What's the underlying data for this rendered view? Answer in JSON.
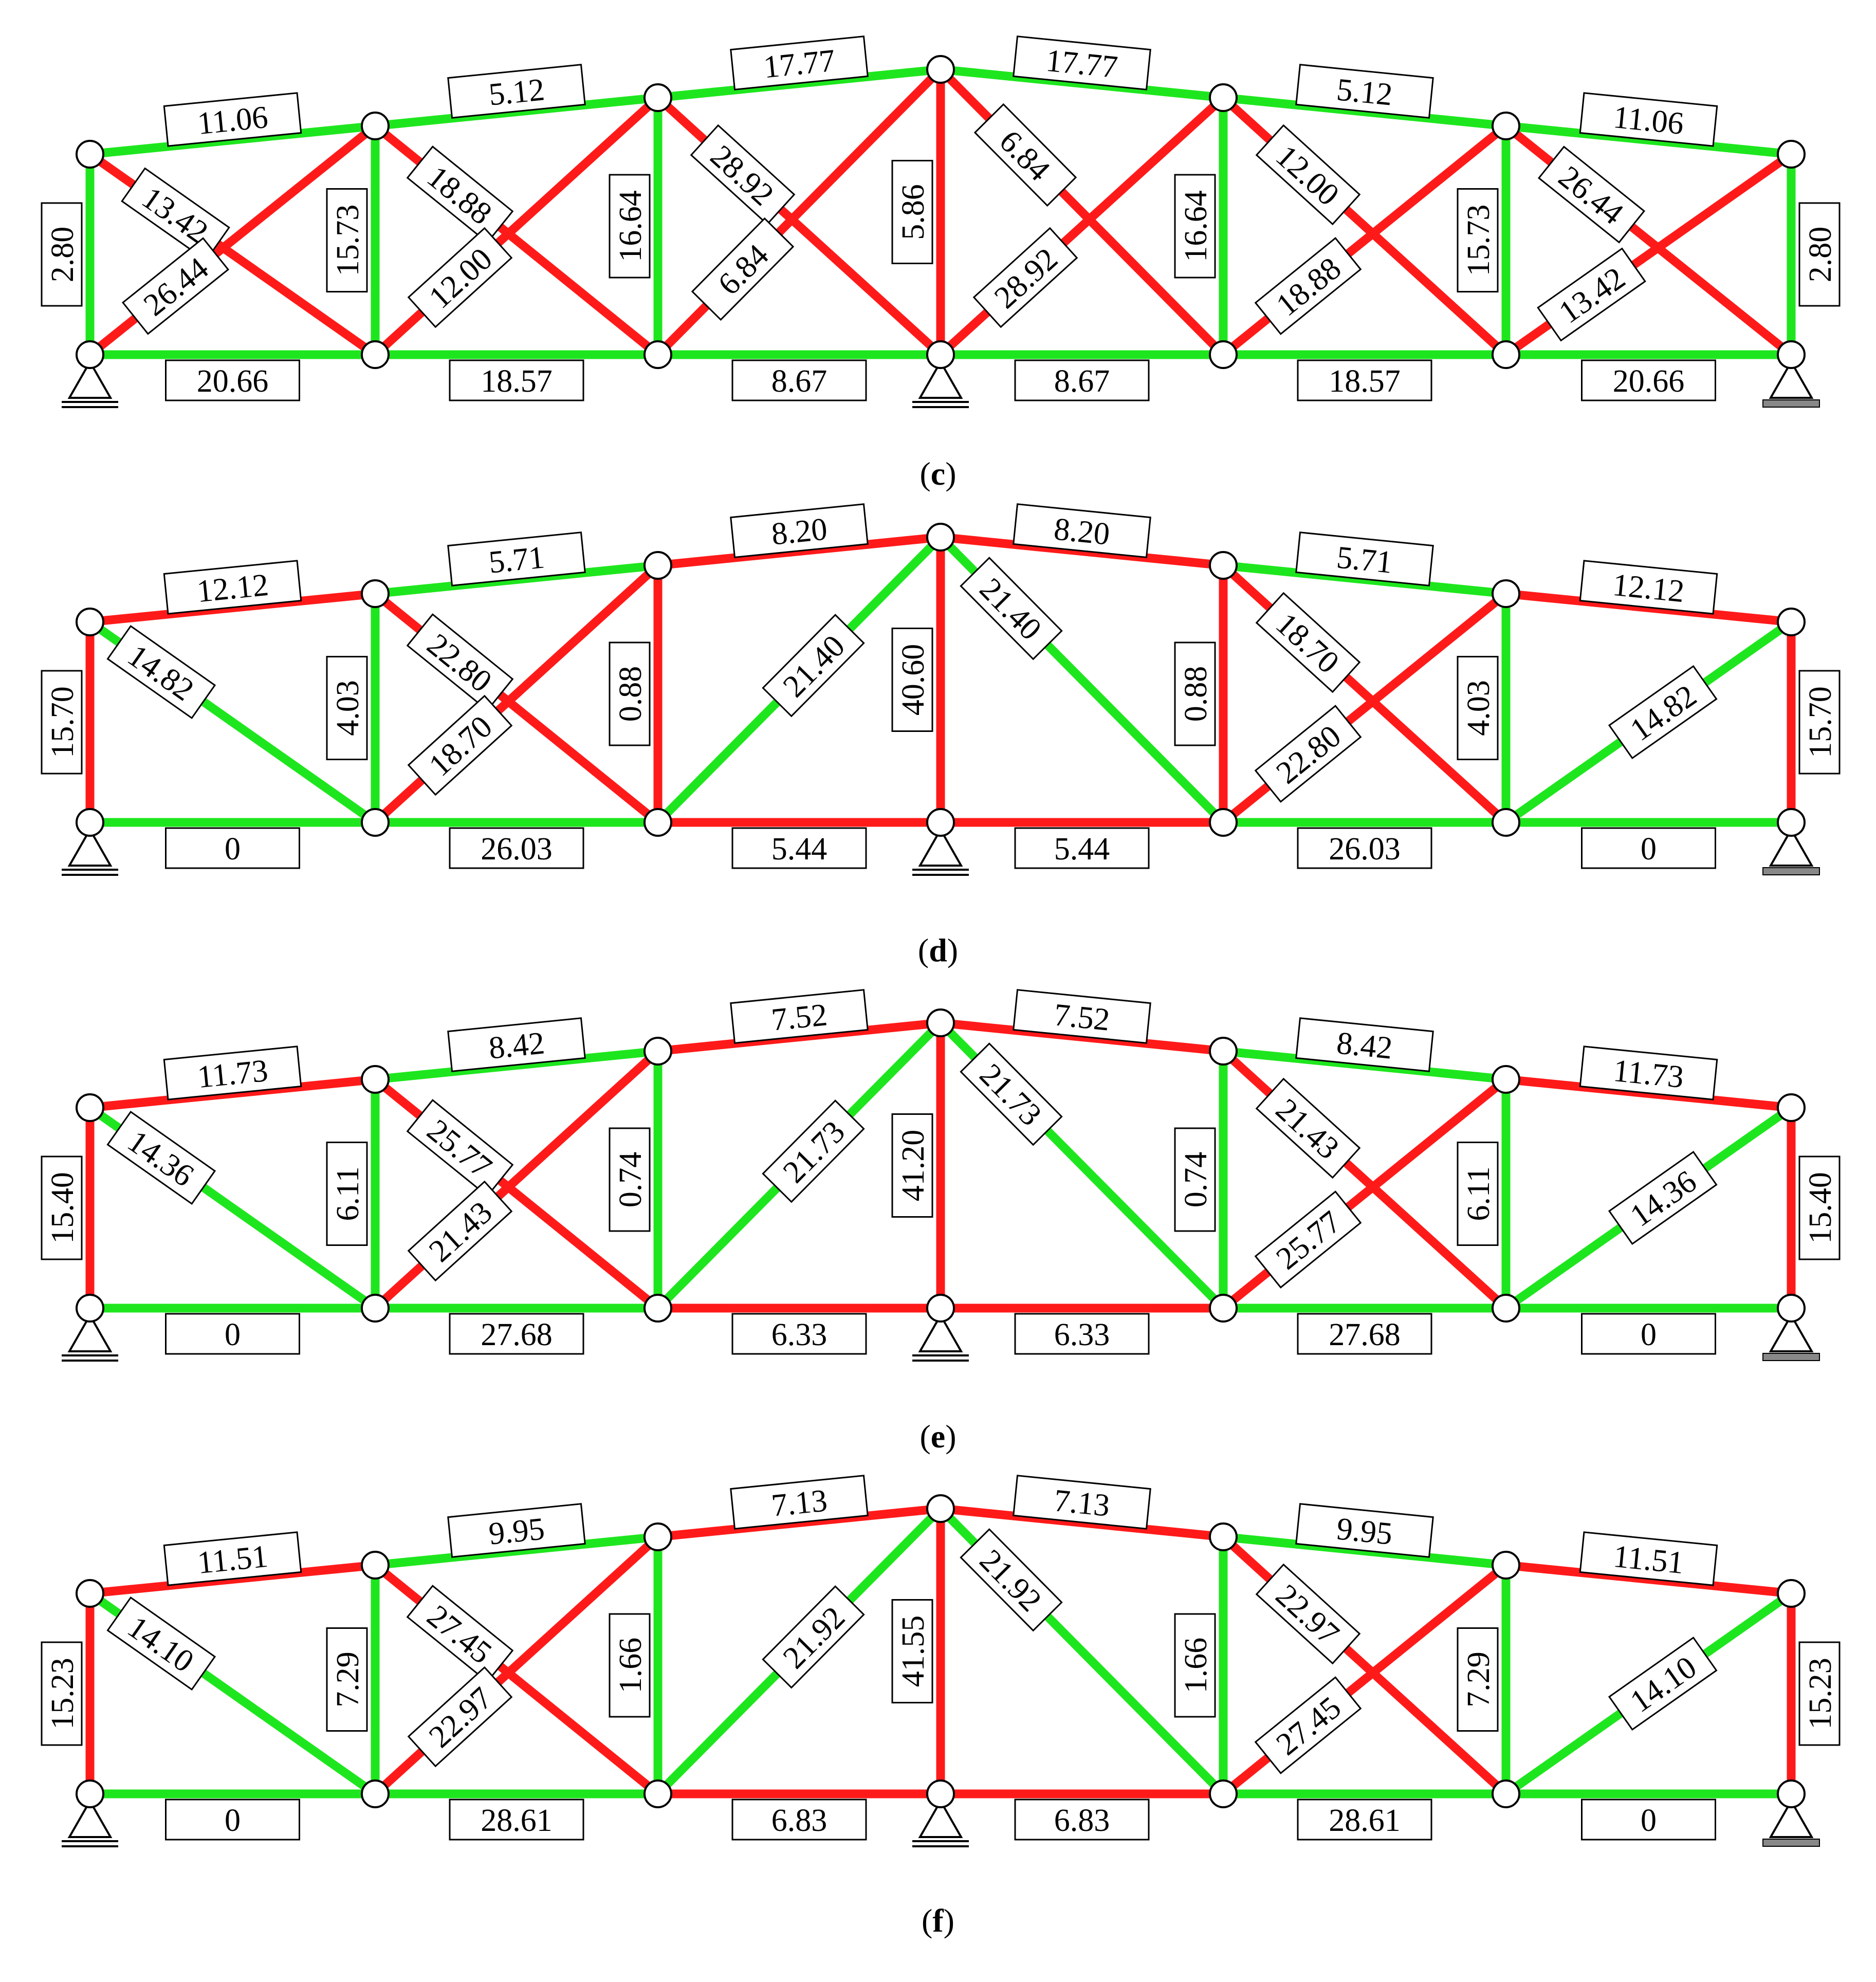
{
  "colors": {
    "tension": "#ff1a1a",
    "compression": "#1ee61e",
    "node_fill": "#ffffff",
    "outline": "#000000"
  },
  "panels": [
    {
      "caption": "c",
      "members": {
        "top": [
          {
            "v": "11.06",
            "c": "g"
          },
          {
            "v": "5.12",
            "c": "g"
          },
          {
            "v": "17.77",
            "c": "g"
          },
          {
            "v": "17.77",
            "c": "g"
          },
          {
            "v": "5.12",
            "c": "g"
          },
          {
            "v": "11.06",
            "c": "g"
          }
        ],
        "bottom": [
          {
            "v": "20.66",
            "c": "g"
          },
          {
            "v": "18.57",
            "c": "g"
          },
          {
            "v": "8.67",
            "c": "g"
          },
          {
            "v": "8.67",
            "c": "g"
          },
          {
            "v": "18.57",
            "c": "g"
          },
          {
            "v": "20.66",
            "c": "g"
          }
        ],
        "verts": [
          {
            "v": "2.80",
            "c": "g"
          },
          {
            "v": "15.73",
            "c": "g"
          },
          {
            "v": "16.64",
            "c": "g"
          },
          {
            "v": "5.86",
            "c": "r"
          },
          {
            "v": "16.64",
            "c": "g"
          },
          {
            "v": "15.73",
            "c": "g"
          },
          {
            "v": "2.80",
            "c": "g"
          }
        ],
        "diag_down": [
          {
            "v": "13.42",
            "c": "r"
          },
          {
            "v": "18.88",
            "c": "r"
          },
          {
            "v": "28.92",
            "c": "r"
          },
          {
            "v": "6.84",
            "c": "r"
          },
          {
            "v": "12.00",
            "c": "r"
          },
          {
            "v": "26.44",
            "c": "r"
          }
        ],
        "diag_up": [
          {
            "v": "26.44",
            "c": "r"
          },
          {
            "v": "12.00",
            "c": "r"
          },
          {
            "v": "6.84",
            "c": "r"
          },
          {
            "v": "28.92",
            "c": "r"
          },
          {
            "v": "18.88",
            "c": "r"
          },
          {
            "v": "13.42",
            "c": "r"
          }
        ]
      }
    },
    {
      "caption": "d",
      "members": {
        "top": [
          {
            "v": "12.12",
            "c": "r"
          },
          {
            "v": "5.71",
            "c": "g"
          },
          {
            "v": "8.20",
            "c": "r"
          },
          {
            "v": "8.20",
            "c": "r"
          },
          {
            "v": "5.71",
            "c": "g"
          },
          {
            "v": "12.12",
            "c": "r"
          }
        ],
        "bottom": [
          {
            "v": "0",
            "c": "g"
          },
          {
            "v": "26.03",
            "c": "g"
          },
          {
            "v": "5.44",
            "c": "r"
          },
          {
            "v": "5.44",
            "c": "r"
          },
          {
            "v": "26.03",
            "c": "g"
          },
          {
            "v": "0",
            "c": "g"
          }
        ],
        "verts": [
          {
            "v": "15.70",
            "c": "r"
          },
          {
            "v": "4.03",
            "c": "g"
          },
          {
            "v": "0.88",
            "c": "r"
          },
          {
            "v": "40.60",
            "c": "r"
          },
          {
            "v": "0.88",
            "c": "r"
          },
          {
            "v": "4.03",
            "c": "g"
          },
          {
            "v": "15.70",
            "c": "r"
          }
        ],
        "diag_down": [
          {
            "v": "14.82",
            "c": "g"
          },
          {
            "v": "22.80",
            "c": "r"
          },
          null,
          {
            "v": "21.40",
            "c": "g"
          },
          {
            "v": "18.70",
            "c": "r"
          },
          null
        ],
        "diag_up": [
          null,
          {
            "v": "18.70",
            "c": "r"
          },
          {
            "v": "21.40",
            "c": "g"
          },
          null,
          {
            "v": "22.80",
            "c": "r"
          },
          {
            "v": "14.82",
            "c": "g"
          }
        ]
      }
    },
    {
      "caption": "e",
      "members": {
        "top": [
          {
            "v": "11.73",
            "c": "r"
          },
          {
            "v": "8.42",
            "c": "g"
          },
          {
            "v": "7.52",
            "c": "r"
          },
          {
            "v": "7.52",
            "c": "r"
          },
          {
            "v": "8.42",
            "c": "g"
          },
          {
            "v": "11.73",
            "c": "r"
          }
        ],
        "bottom": [
          {
            "v": "0",
            "c": "g"
          },
          {
            "v": "27.68",
            "c": "g"
          },
          {
            "v": "6.33",
            "c": "r"
          },
          {
            "v": "6.33",
            "c": "r"
          },
          {
            "v": "27.68",
            "c": "g"
          },
          {
            "v": "0",
            "c": "g"
          }
        ],
        "verts": [
          {
            "v": "15.40",
            "c": "r"
          },
          {
            "v": "6.11",
            "c": "g"
          },
          {
            "v": "0.74",
            "c": "g"
          },
          {
            "v": "41.20",
            "c": "r"
          },
          {
            "v": "0.74",
            "c": "g"
          },
          {
            "v": "6.11",
            "c": "g"
          },
          {
            "v": "15.40",
            "c": "r"
          }
        ],
        "diag_down": [
          {
            "v": "14.36",
            "c": "g"
          },
          {
            "v": "25.77",
            "c": "r"
          },
          null,
          {
            "v": "21.73",
            "c": "g"
          },
          {
            "v": "21.43",
            "c": "r"
          },
          null
        ],
        "diag_up": [
          null,
          {
            "v": "21.43",
            "c": "r"
          },
          {
            "v": "21.73",
            "c": "g"
          },
          null,
          {
            "v": "25.77",
            "c": "r"
          },
          {
            "v": "14.36",
            "c": "g"
          }
        ]
      }
    },
    {
      "caption": "f",
      "members": {
        "top": [
          {
            "v": "11.51",
            "c": "r"
          },
          {
            "v": "9.95",
            "c": "g"
          },
          {
            "v": "7.13",
            "c": "r"
          },
          {
            "v": "7.13",
            "c": "r"
          },
          {
            "v": "9.95",
            "c": "g"
          },
          {
            "v": "11.51",
            "c": "r"
          }
        ],
        "bottom": [
          {
            "v": "0",
            "c": "g"
          },
          {
            "v": "28.61",
            "c": "g"
          },
          {
            "v": "6.83",
            "c": "r"
          },
          {
            "v": "6.83",
            "c": "r"
          },
          {
            "v": "28.61",
            "c": "g"
          },
          {
            "v": "0",
            "c": "g"
          }
        ],
        "verts": [
          {
            "v": "15.23",
            "c": "r"
          },
          {
            "v": "7.29",
            "c": "g"
          },
          {
            "v": "1.66",
            "c": "g"
          },
          {
            "v": "41.55",
            "c": "r"
          },
          {
            "v": "1.66",
            "c": "g"
          },
          {
            "v": "7.29",
            "c": "g"
          },
          {
            "v": "15.23",
            "c": "r"
          }
        ],
        "diag_down": [
          {
            "v": "14.10",
            "c": "g"
          },
          {
            "v": "27.45",
            "c": "r"
          },
          null,
          {
            "v": "21.92",
            "c": "g"
          },
          {
            "v": "22.97",
            "c": "r"
          },
          null
        ],
        "diag_up": [
          null,
          {
            "v": "22.97",
            "c": "r"
          },
          {
            "v": "21.92",
            "c": "g"
          },
          null,
          {
            "v": "27.45",
            "c": "r"
          },
          {
            "v": "14.10",
            "c": "g"
          }
        ]
      }
    }
  ]
}
